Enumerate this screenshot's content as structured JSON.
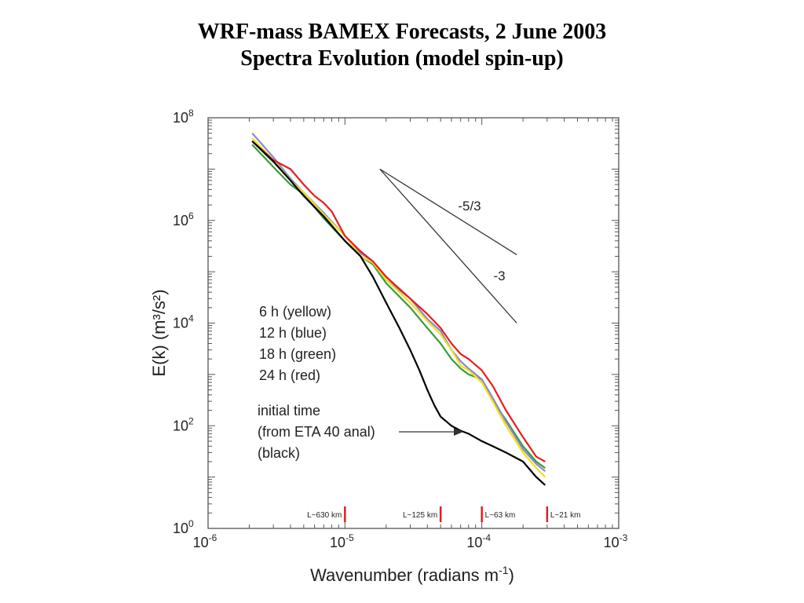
{
  "title": {
    "line1": "WRF-mass BAMEX Forecasts, 2 June 2003",
    "line2": "Spectra Evolution (model spin-up)"
  },
  "chart_data": {
    "type": "line",
    "title": "WRF-mass BAMEX Forecasts, 2 June 2003 Spectra Evolution (model spin-up)",
    "xlabel": "Wavenumber  (radians m",
    "xlabel_sup": "-1",
    "xlabel_close": ")",
    "ylabel": "E(k) (m³/s²)",
    "xscale": "log",
    "yscale": "log",
    "xlim": [
      1e-06,
      0.001
    ],
    "ylim": [
      1,
      100000000.0
    ],
    "x_ticks": [
      {
        "value": 1e-06,
        "base": "10",
        "exp": "-6"
      },
      {
        "value": 1e-05,
        "base": "10",
        "exp": "-5"
      },
      {
        "value": 0.0001,
        "base": "10",
        "exp": "-4"
      },
      {
        "value": 0.001,
        "base": "10",
        "exp": "-3"
      }
    ],
    "y_ticks": [
      {
        "value": 1,
        "base": "10",
        "exp": "0"
      },
      {
        "value": 100,
        "base": "10",
        "exp": "2"
      },
      {
        "value": 10000,
        "base": "10",
        "exp": "4"
      },
      {
        "value": 1000000,
        "base": "10",
        "exp": "6"
      },
      {
        "value": 100000000,
        "base": "10",
        "exp": "8"
      }
    ],
    "series": [
      {
        "name": "initial time",
        "color": "#000000",
        "x": [
          2.1e-06,
          3e-06,
          4e-06,
          5e-06,
          7e-06,
          1e-05,
          1.3e-05,
          1.6e-05,
          2e-05,
          2.5e-05,
          3e-05,
          3.5e-05,
          4e-05,
          4.5e-05,
          5e-05,
          6e-05,
          7e-05,
          8e-05,
          0.0001,
          0.00012,
          0.00015,
          0.0002,
          0.00025,
          0.00029
        ],
        "y": [
          35000000.0,
          14000000.0,
          6000000.0,
          3000000.0,
          1200000.0,
          400000.0,
          200000.0,
          80000.0,
          25000.0,
          8000,
          3000,
          1200,
          500,
          250,
          150,
          100,
          80,
          70,
          50,
          40,
          30,
          20,
          10,
          7
        ]
      },
      {
        "name": "6 h",
        "color": "#f0e020",
        "x": [
          2.1e-06,
          3e-06,
          4e-06,
          5e-06,
          7e-06,
          1e-05,
          1.3e-05,
          1.6e-05,
          2e-05,
          3e-05,
          4e-05,
          5e-05,
          6e-05,
          7e-05,
          8e-05,
          0.0001,
          0.00012,
          0.00015,
          0.0002,
          0.00025,
          0.00029
        ],
        "y": [
          40000000.0,
          15000000.0,
          6000000.0,
          3500000.0,
          1300000.0,
          500000.0,
          200000.0,
          150000.0,
          70000.0,
          25000.0,
          11000.0,
          6000,
          3000,
          1500,
          1200,
          700,
          300,
          100,
          30,
          15,
          10
        ]
      },
      {
        "name": "12 h",
        "color": "#8888cc",
        "x": [
          2.1e-06,
          3e-06,
          4e-06,
          5e-06,
          7e-06,
          1e-05,
          1.3e-05,
          1.6e-05,
          2e-05,
          3e-05,
          4e-05,
          5e-05,
          6e-05,
          7e-05,
          8e-05,
          0.0001,
          0.00012,
          0.00015,
          0.0002,
          0.00025,
          0.00029
        ],
        "y": [
          50000000.0,
          17000000.0,
          6500000.0,
          3500000.0,
          1400000.0,
          500000.0,
          230000.0,
          160000.0,
          70000.0,
          30000.0,
          12000.0,
          7000,
          3000,
          1800,
          1300,
          800,
          350,
          120,
          35,
          18,
          13
        ]
      },
      {
        "name": "18 h",
        "color": "#3a9a3a",
        "x": [
          2.1e-06,
          3e-06,
          4e-06,
          5e-06,
          7e-06,
          1e-05,
          1.3e-05,
          1.6e-05,
          2e-05,
          3e-05,
          4e-05,
          5e-05,
          6e-05,
          7e-05,
          8e-05,
          0.0001,
          0.00012,
          0.00015,
          0.0002,
          0.00025,
          0.00029
        ],
        "y": [
          30000000.0,
          11000000.0,
          5000000.0,
          3200000.0,
          1100000.0,
          400000.0,
          200000.0,
          140000.0,
          60000.0,
          20000.0,
          8000,
          4000,
          2000,
          1300,
          1000,
          800,
          300,
          130,
          40,
          20,
          15
        ]
      },
      {
        "name": "24 h",
        "color": "#e02020",
        "x": [
          2.1e-06,
          3e-06,
          4e-06,
          5e-06,
          6e-06,
          7e-06,
          8e-06,
          1e-05,
          1.3e-05,
          1.6e-05,
          2e-05,
          3e-05,
          4e-05,
          5e-05,
          6e-05,
          7e-05,
          8e-05,
          0.0001,
          0.00012,
          0.00015,
          0.0002,
          0.00025,
          0.00029
        ],
        "y": [
          35000000.0,
          15000000.0,
          10000000.0,
          5000000.0,
          3000000.0,
          2200000.0,
          1500000.0,
          500000.0,
          250000.0,
          160000.0,
          80000.0,
          30000.0,
          15000.0,
          8000,
          4000,
          2500,
          2000,
          1200,
          600,
          200,
          60,
          25,
          20
        ]
      }
    ],
    "legend": {
      "placement": "center-left",
      "items": [
        "6 h (yellow)",
        "12 h (blue)",
        "18 h (green)",
        "24 h (red)"
      ],
      "initial_lines": [
        "initial time",
        "(from ETA 40 anal)",
        "(black)"
      ]
    },
    "slope_lines": [
      {
        "label": "-5/3",
        "from": [
          1.8e-05,
          10000000.0
        ],
        "to": [
          0.00018,
          215000.0
        ]
      },
      {
        "label": "-3",
        "from": [
          1.8e-05,
          10000000.0
        ],
        "to": [
          0.00018,
          10000.0
        ]
      }
    ],
    "scale_markers": [
      {
        "label": "L~630 km",
        "x": 1e-05
      },
      {
        "label": "L~125 km",
        "x": 5e-05
      },
      {
        "label": "L~63 km",
        "x": 0.0001
      },
      {
        "label": "L~21 km",
        "x": 0.0003
      }
    ],
    "grid": false
  }
}
